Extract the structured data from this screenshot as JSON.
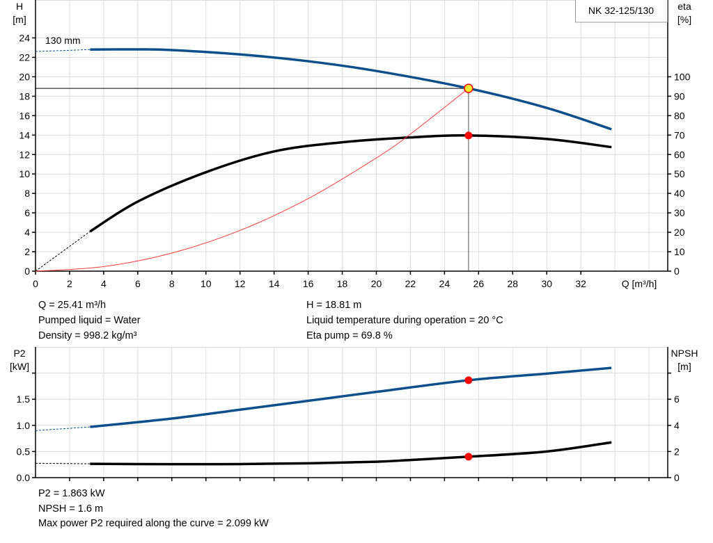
{
  "chart_data": [
    {
      "type": "line",
      "legend_box": "NK 32-125/130",
      "curve_label": "130 mm",
      "xlabel": "Q [m³/h]",
      "ylabel_left": [
        "H",
        "[m]"
      ],
      "ylabel_right": [
        "eta",
        "[%]"
      ],
      "xlim": [
        0,
        37.1
      ],
      "ylim_left": [
        0,
        27.9
      ],
      "ylim_right": [
        0,
        139.5
      ],
      "x_ticks": [
        0,
        2,
        4,
        6,
        8,
        10,
        12,
        14,
        16,
        18,
        20,
        22,
        24,
        26,
        28,
        30,
        32
      ],
      "y_ticks_left": [
        0,
        2,
        4,
        6,
        8,
        10,
        12,
        14,
        16,
        18,
        20,
        22,
        24
      ],
      "y_ticks_right": [
        0,
        10,
        20,
        30,
        40,
        50,
        60,
        70,
        80,
        90,
        100
      ],
      "grid": true,
      "colors": {
        "head": "#0e4f8b",
        "eta": "#000000",
        "system": "#ff3b3b",
        "point": "#ff0000",
        "duty_point": "#ffee33"
      },
      "series": [
        {
          "key": "head",
          "axis": "left",
          "dashed_to": 3.2,
          "x": [
            0,
            3.2,
            6,
            8,
            12,
            16,
            20,
            25.41,
            30,
            33.8
          ],
          "y": [
            22.6,
            22.8,
            22.82,
            22.75,
            22.3,
            21.6,
            20.6,
            18.81,
            16.8,
            14.6
          ]
        },
        {
          "key": "eta",
          "axis": "right",
          "dashed_to": 3.2,
          "x": [
            0,
            3.2,
            6,
            10,
            14,
            18,
            22,
            25.41,
            30,
            33.8
          ],
          "y": [
            0,
            20.4,
            35.8,
            50.9,
            61.6,
            66.3,
            68.8,
            69.8,
            68,
            63.8
          ]
        },
        {
          "key": "system",
          "axis": "left",
          "x": [
            0,
            4,
            8,
            12,
            16,
            20,
            22,
            25.41
          ],
          "y": [
            0,
            0.47,
            1.86,
            4.19,
            7.46,
            11.65,
            14.1,
            18.81
          ]
        }
      ],
      "duty_point": {
        "q": 25.41,
        "h": 18.81,
        "eta": 69.8
      }
    },
    {
      "type": "line",
      "ylabel_left": [
        "P2",
        "[kW]"
      ],
      "ylabel_right": [
        "NPSH",
        "[m]"
      ],
      "xlim": [
        0,
        37.1
      ],
      "ylim_left": [
        0,
        2.5
      ],
      "ylim_right": [
        0,
        10
      ],
      "y_ticks_left": [
        "0.0",
        "0.5",
        "1.0",
        "1.5",
        ""
      ],
      "y_ticks_left_values": [
        0,
        0.5,
        1.0,
        1.5,
        2.0
      ],
      "y_ticks_right": [
        "0",
        "2",
        "4",
        "6",
        ""
      ],
      "y_ticks_right_values": [
        0,
        2,
        4,
        6,
        8
      ],
      "grid": true,
      "series": [
        {
          "key": "p2",
          "axis": "left",
          "dashed_to": 3.2,
          "x": [
            0,
            3.2,
            8,
            12,
            16,
            20,
            25.41,
            30,
            33.8
          ],
          "y": [
            0.9,
            0.97,
            1.13,
            1.3,
            1.47,
            1.64,
            1.863,
            1.99,
            2.099
          ]
        },
        {
          "key": "npsh",
          "axis": "right",
          "dashed_to": 3.2,
          "x": [
            0,
            3.2,
            8,
            12,
            16,
            20,
            22,
            25.41,
            30,
            33.8
          ],
          "y": [
            1.1,
            1.06,
            1.03,
            1.04,
            1.1,
            1.22,
            1.35,
            1.6,
            2.0,
            2.7
          ]
        }
      ],
      "duty_point": {
        "q": 25.41,
        "p2": 1.863,
        "npsh": 1.6
      }
    }
  ],
  "info_top": {
    "q": "Q = 25.41 m³/h",
    "liquid": "Pumped liquid = Water",
    "density": "Density = 998.2 kg/m³",
    "h": "H = 18.81 m",
    "temp": "Liquid temperature during operation = 20 °C",
    "eta": "Eta pump = 69.8 %"
  },
  "info_bottom": {
    "p2": "P2 = 1.863 kW",
    "npsh": "NPSH = 1.6 m",
    "max_p2": "Max power P2 required along the curve = 2.099 kW"
  }
}
